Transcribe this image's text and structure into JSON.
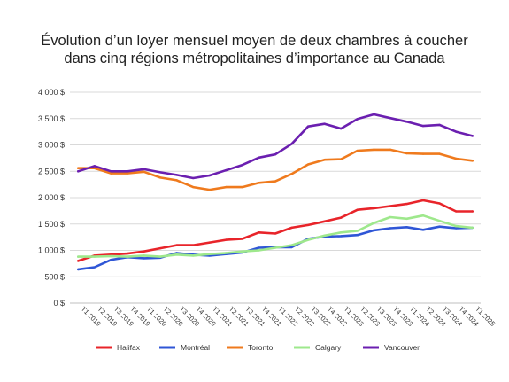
{
  "chart_data": {
    "type": "line",
    "title_line1": "Évolution d’un loyer mensuel moyen de deux chambres à coucher",
    "title_line2": "dans cinq régions métropolitaines d’importance au Canada",
    "xlabel": "",
    "ylabel": "",
    "ylim": [
      0,
      4000
    ],
    "y_ticks": [
      0,
      500,
      1000,
      1500,
      2000,
      2500,
      3000,
      3500,
      4000
    ],
    "y_tick_labels": [
      "0 $",
      "500 $",
      "1 000 $",
      "1 500 $",
      "2 000 $",
      "2 500 $",
      "3 000 $",
      "3 500 $",
      "4 000 $"
    ],
    "grid": true,
    "legend_position": "bottom",
    "categories": [
      "T1 2019",
      "T2 2019",
      "T3 2019",
      "T4 2019",
      "T1 2020",
      "T2 2020",
      "T3 2020",
      "T4 2020",
      "T1 2021",
      "T2 2021",
      "T3 2021",
      "T4 2021",
      "T1 2022",
      "T2 2022",
      "T3 2022",
      "T4 2022",
      "T1 2023",
      "T2 2023",
      "T3 2023",
      "T4 2023",
      "T1 2024",
      "T2 2024",
      "T3 2024",
      "T4 2024",
      "T1 2025"
    ],
    "series": [
      {
        "name": "Halifax",
        "color": "#e8242a",
        "values": [
          800,
          900,
          920,
          940,
          980,
          1040,
          1100,
          1100,
          1150,
          1200,
          1220,
          1340,
          1320,
          1430,
          1480,
          1550,
          1620,
          1770,
          1800,
          1840,
          1880,
          1950,
          1890,
          1740,
          1740
        ]
      },
      {
        "name": "Montréal",
        "color": "#2f56d6",
        "values": [
          640,
          680,
          820,
          870,
          850,
          860,
          950,
          920,
          900,
          930,
          960,
          1050,
          1060,
          1060,
          1220,
          1260,
          1270,
          1290,
          1380,
          1420,
          1440,
          1390,
          1450,
          1420,
          1430
        ]
      },
      {
        "name": "Toronto",
        "color": "#ef7a1d",
        "values": [
          2560,
          2560,
          2460,
          2460,
          2490,
          2380,
          2330,
          2200,
          2150,
          2200,
          2200,
          2280,
          2310,
          2450,
          2630,
          2720,
          2730,
          2890,
          2910,
          2910,
          2840,
          2830,
          2830,
          2740,
          2700
        ]
      },
      {
        "name": "Calgary",
        "color": "#9ee88c",
        "values": [
          880,
          880,
          890,
          880,
          900,
          880,
          920,
          900,
          930,
          950,
          980,
          1000,
          1050,
          1100,
          1200,
          1280,
          1340,
          1370,
          1520,
          1630,
          1600,
          1660,
          1560,
          1460,
          1430
        ]
      },
      {
        "name": "Vancouver",
        "color": "#6b1fb0",
        "values": [
          2500,
          2600,
          2500,
          2500,
          2540,
          2480,
          2430,
          2370,
          2420,
          2520,
          2620,
          2760,
          2820,
          3020,
          3350,
          3400,
          3310,
          3490,
          3580,
          3510,
          3440,
          3360,
          3380,
          3250,
          3170
        ]
      }
    ]
  }
}
